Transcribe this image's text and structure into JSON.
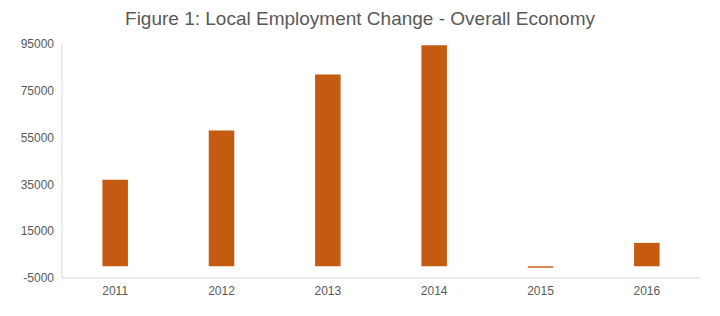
{
  "chart_data": {
    "type": "bar",
    "title": "Figure 1: Local Employment Change - Overall Economy",
    "categories": [
      "2011",
      "2012",
      "2013",
      "2014",
      "2015",
      "2016"
    ],
    "values": [
      37000,
      58000,
      82000,
      94500,
      -600,
      10000
    ],
    "color": "#c55a11",
    "ylim": [
      -5000,
      95000
    ],
    "yticks": [
      -5000,
      15000,
      35000,
      55000,
      75000,
      95000
    ],
    "grid": false
  }
}
